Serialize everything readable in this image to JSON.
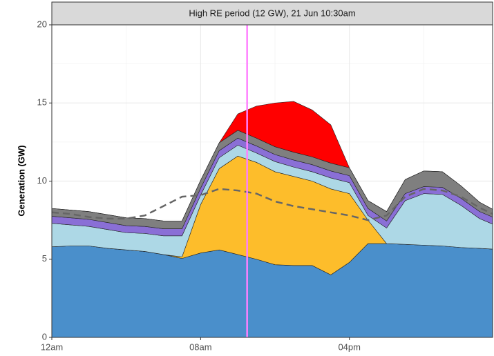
{
  "chart_data": {
    "type": "stacked_area",
    "title": "High RE period (12 GW), 21 Jun 10:30am",
    "y_label": "Generation (GW)",
    "x": [
      0,
      1,
      2,
      3,
      4,
      5,
      6,
      7,
      8,
      9,
      10,
      11,
      12,
      13,
      14,
      15,
      16,
      17,
      18,
      19,
      20,
      21,
      22,
      23,
      23.7
    ],
    "series": [
      {
        "color": "#4a8fcb",
        "values": [
          5.8,
          5.85,
          5.85,
          5.7,
          5.6,
          5.5,
          5.3,
          5.05,
          5.4,
          5.6,
          5.3,
          5.0,
          4.65,
          4.6,
          4.6,
          4.0,
          4.8,
          6.0,
          6.0,
          5.95,
          5.9,
          5.85,
          5.75,
          5.7,
          5.65
        ]
      },
      {
        "color": "#fdbd2b",
        "values": [
          0,
          0,
          0,
          0,
          0,
          0,
          0,
          0.1,
          3.1,
          5.2,
          6.3,
          6.2,
          5.95,
          5.7,
          5.4,
          5.5,
          4.4,
          1.5,
          0,
          0,
          0,
          0,
          0,
          0,
          0
        ]
      },
      {
        "color": "#add8e6",
        "values": [
          1.5,
          1.35,
          1.25,
          1.2,
          1.1,
          1.15,
          1.2,
          1.35,
          0.6,
          0.7,
          0.7,
          0.6,
          0.65,
          0.6,
          0.6,
          0.7,
          0.7,
          0.3,
          1.0,
          2.8,
          3.3,
          3.3,
          2.7,
          1.9,
          1.6
        ]
      },
      {
        "color": "#8a6fd6",
        "values": [
          0.45,
          0.45,
          0.45,
          0.45,
          0.45,
          0.45,
          0.45,
          0.45,
          0.45,
          0.45,
          0.45,
          0.45,
          0.45,
          0.45,
          0.45,
          0.45,
          0.45,
          0.45,
          0.45,
          0.45,
          0.45,
          0.45,
          0.45,
          0.45,
          0.45
        ]
      },
      {
        "color": "#7f7f7f",
        "values": [
          0.5,
          0.5,
          0.5,
          0.5,
          0.5,
          0.5,
          0.5,
          0.5,
          0.5,
          0.5,
          0.5,
          0.5,
          0.5,
          0.5,
          0.5,
          0.5,
          0.5,
          0.5,
          0.6,
          0.9,
          1.0,
          1.0,
          0.8,
          0.6,
          0.5
        ]
      },
      {
        "color": "#ff0000",
        "values": [
          0,
          0,
          0,
          0,
          0,
          0,
          0,
          0,
          0,
          0,
          1.05,
          2.05,
          2.8,
          3.25,
          3.0,
          2.45,
          0,
          0,
          0,
          0,
          0,
          0,
          0,
          0,
          0
        ]
      }
    ],
    "demand": {
      "color": "#666666",
      "values": [
        8.0,
        7.9,
        7.7,
        7.6,
        7.6,
        7.8,
        8.4,
        9.0,
        9.1,
        9.5,
        9.4,
        9.2,
        8.7,
        8.4,
        8.2,
        8.0,
        7.8,
        7.5,
        7.8,
        9.0,
        9.5,
        9.4,
        9.0,
        8.3,
        7.9
      ]
    },
    "highlight_x": 10.5,
    "highlight_color": "#ff80ff",
    "xlim": [
      0,
      23.7
    ],
    "ylim": [
      0,
      20
    ],
    "xticks": [
      {
        "value": 0,
        "label": "12am"
      },
      {
        "value": 8,
        "label": "08am"
      },
      {
        "value": 16,
        "label": "04pm"
      }
    ],
    "yticks": [
      0,
      5,
      10,
      15,
      20
    ],
    "x_minor_grid": [
      4,
      12,
      20
    ],
    "y_minor_grid": [
      2.5,
      7.5,
      12.5,
      17.5
    ],
    "grid": true
  }
}
